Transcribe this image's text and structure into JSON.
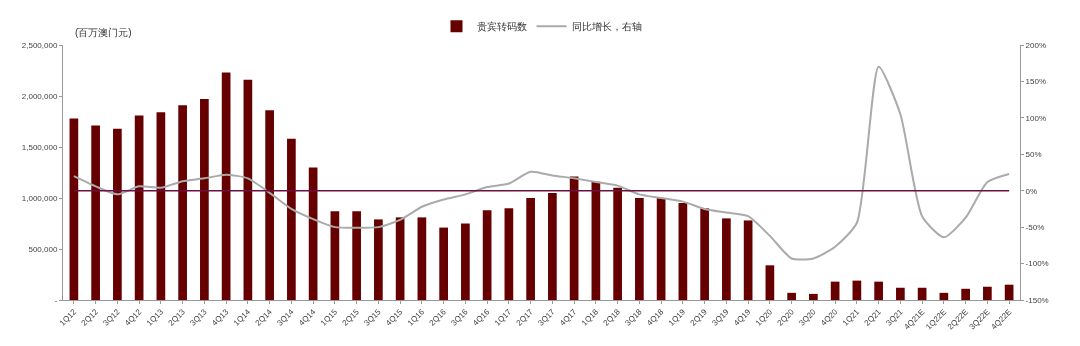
{
  "chart_data": {
    "type": "bar",
    "ylabel": "(百万澳门元)",
    "categories": [
      "1Q12",
      "2Q12",
      "3Q12",
      "4Q12",
      "1Q13",
      "2Q13",
      "3Q13",
      "4Q13",
      "1Q14",
      "2Q14",
      "3Q14",
      "4Q14",
      "1Q15",
      "2Q15",
      "3Q15",
      "4Q15",
      "1Q16",
      "2Q16",
      "3Q16",
      "4Q16",
      "1Q17",
      "2Q17",
      "3Q17",
      "4Q17",
      "1Q18",
      "2Q18",
      "3Q18",
      "4Q18",
      "1Q19",
      "2Q19",
      "3Q19",
      "4Q19",
      "1Q20",
      "2Q20",
      "3Q20",
      "4Q20",
      "1Q21",
      "2Q21",
      "3Q21",
      "4Q21E",
      "1Q22E",
      "2Q22E",
      "3Q22E",
      "4Q22E"
    ],
    "series": [
      {
        "name": "贵宾转码数",
        "color": "#660000",
        "values": [
          1780000,
          1710000,
          1680000,
          1810000,
          1840000,
          1910000,
          1970000,
          2230000,
          2160000,
          1860000,
          1580000,
          1300000,
          870000,
          870000,
          790000,
          810000,
          810000,
          710000,
          750000,
          880000,
          900000,
          1000000,
          1050000,
          1210000,
          1160000,
          1100000,
          1000000,
          1000000,
          950000,
          900000,
          800000,
          780000,
          340000,
          70000,
          60000,
          180000,
          190000,
          180000,
          120000,
          120000,
          70000,
          110000,
          130000,
          150000
        ]
      },
      {
        "name": "同比增长，右轴",
        "type": "line",
        "axis": "y2",
        "color": "#aaaaaa",
        "values": [
          20,
          6,
          -5,
          6,
          4,
          13,
          17,
          22,
          17,
          -3,
          -25,
          -39,
          -50,
          -51,
          -50,
          -40,
          -22,
          -12,
          -5,
          5,
          10,
          26,
          21,
          17,
          12,
          7,
          -5,
          -10,
          -15,
          -25,
          -30,
          -35,
          -62,
          -93,
          -93,
          -77,
          -44,
          170,
          105,
          -35,
          -64,
          -37,
          12,
          23
        ]
      }
    ],
    "ylim": [
      0,
      2500000
    ],
    "yticks": [
      {
        "value": 0,
        "label": "-"
      },
      {
        "value": 500000,
        "label": "500,000"
      },
      {
        "value": 1000000,
        "label": "1,000,000"
      },
      {
        "value": 1500000,
        "label": "1,500,000"
      },
      {
        "value": 2000000,
        "label": "2,000,000"
      },
      {
        "value": 2500000,
        "label": "2,500,000"
      }
    ],
    "y2lim": [
      -150,
      200
    ],
    "y2ticks": [
      {
        "value": -150,
        "label": "-150%"
      },
      {
        "value": -100,
        "label": "-100%"
      },
      {
        "value": -50,
        "label": "-50%"
      },
      {
        "value": 0,
        "label": "0%"
      },
      {
        "value": 50,
        "label": "50%"
      },
      {
        "value": 100,
        "label": "100%"
      },
      {
        "value": 150,
        "label": "150%"
      },
      {
        "value": 200,
        "label": "200%"
      }
    ],
    "ref_lines": [
      {
        "axis": "y2",
        "value": 0,
        "color": "#6b1040"
      }
    ],
    "grid": false,
    "legend": "top",
    "marker": "none",
    "line_style": "solid"
  }
}
